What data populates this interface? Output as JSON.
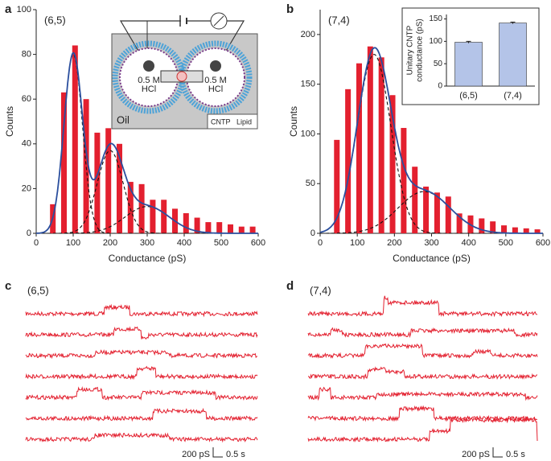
{
  "chart_data": [
    {
      "type": "bar",
      "panel": "a",
      "annotation": "(6,5)",
      "xlabel": "Conductance (pS)",
      "ylabel": "Counts",
      "x": [
        45,
        75,
        105,
        135,
        165,
        195,
        225,
        255,
        285,
        315,
        345,
        375,
        405,
        435,
        465,
        495,
        525,
        555,
        585
      ],
      "values": [
        13,
        63,
        84,
        60,
        45,
        47,
        40,
        23,
        22,
        15,
        15,
        11,
        9,
        7,
        5,
        5,
        4,
        3,
        3
      ],
      "color": "#e3202f",
      "fit_color": "#2b4f9e",
      "fits": [
        {
          "center": 100,
          "width": 25,
          "amplitude": 80
        },
        {
          "center": 200,
          "width": 35,
          "amplitude": 37
        },
        {
          "center": 300,
          "width": 60,
          "amplitude": 12
        }
      ],
      "xlim": [
        0,
        600
      ],
      "xticks": [
        0,
        100,
        200,
        300,
        400,
        500,
        600
      ],
      "ylim": [
        0,
        100
      ],
      "yticks": [
        0,
        20,
        40,
        60,
        80,
        100
      ]
    },
    {
      "type": "bar",
      "panel": "b",
      "annotation": "(7,4)",
      "xlabel": "Conductance (pS)",
      "ylabel": "Counts",
      "x": [
        45,
        75,
        105,
        135,
        165,
        195,
        225,
        255,
        285,
        315,
        345,
        375,
        405,
        435,
        465,
        495,
        525,
        555,
        585
      ],
      "values": [
        94,
        145,
        171,
        188,
        177,
        139,
        106,
        67,
        47,
        41,
        37,
        20,
        18,
        15,
        12,
        8,
        6,
        5,
        4
      ],
      "color": "#e3202f",
      "fit_color": "#2b4f9e",
      "fits": [
        {
          "center": 145,
          "width": 45,
          "amplitude": 180
        },
        {
          "center": 280,
          "width": 70,
          "amplitude": 42
        }
      ],
      "xlim": [
        0,
        600
      ],
      "xticks": [
        0,
        100,
        200,
        300,
        400,
        500,
        600
      ],
      "ylim": [
        0,
        225
      ],
      "yticks": [
        0,
        50,
        100,
        150,
        200
      ]
    },
    {
      "type": "errorbar",
      "categories": [
        "(6,5)",
        "(7,4)"
      ],
      "values": [
        98,
        141
      ],
      "errors": [
        2,
        2
      ],
      "color": "#b4c4e8",
      "ylabel": [
        "Unitary CNTP",
        "conductance (pS)"
      ],
      "ylim": [
        0,
        160
      ],
      "yticks": [
        0,
        50,
        100,
        150
      ]
    }
  ],
  "diagram": {
    "left_label": [
      "0.5 M",
      "HCl"
    ],
    "right_label": [
      "0.5 M",
      "HCl"
    ],
    "medium": "Oil",
    "legend": [
      "CNTP",
      "Lipid"
    ]
  },
  "traces": [
    {
      "panel": "c",
      "annotation": "(6,5)",
      "scale_labels": [
        "200 pS",
        "0.5 s"
      ]
    },
    {
      "panel": "d",
      "annotation": "(7,4)",
      "scale_labels": [
        "200 pS",
        "0.5 s"
      ]
    }
  ]
}
